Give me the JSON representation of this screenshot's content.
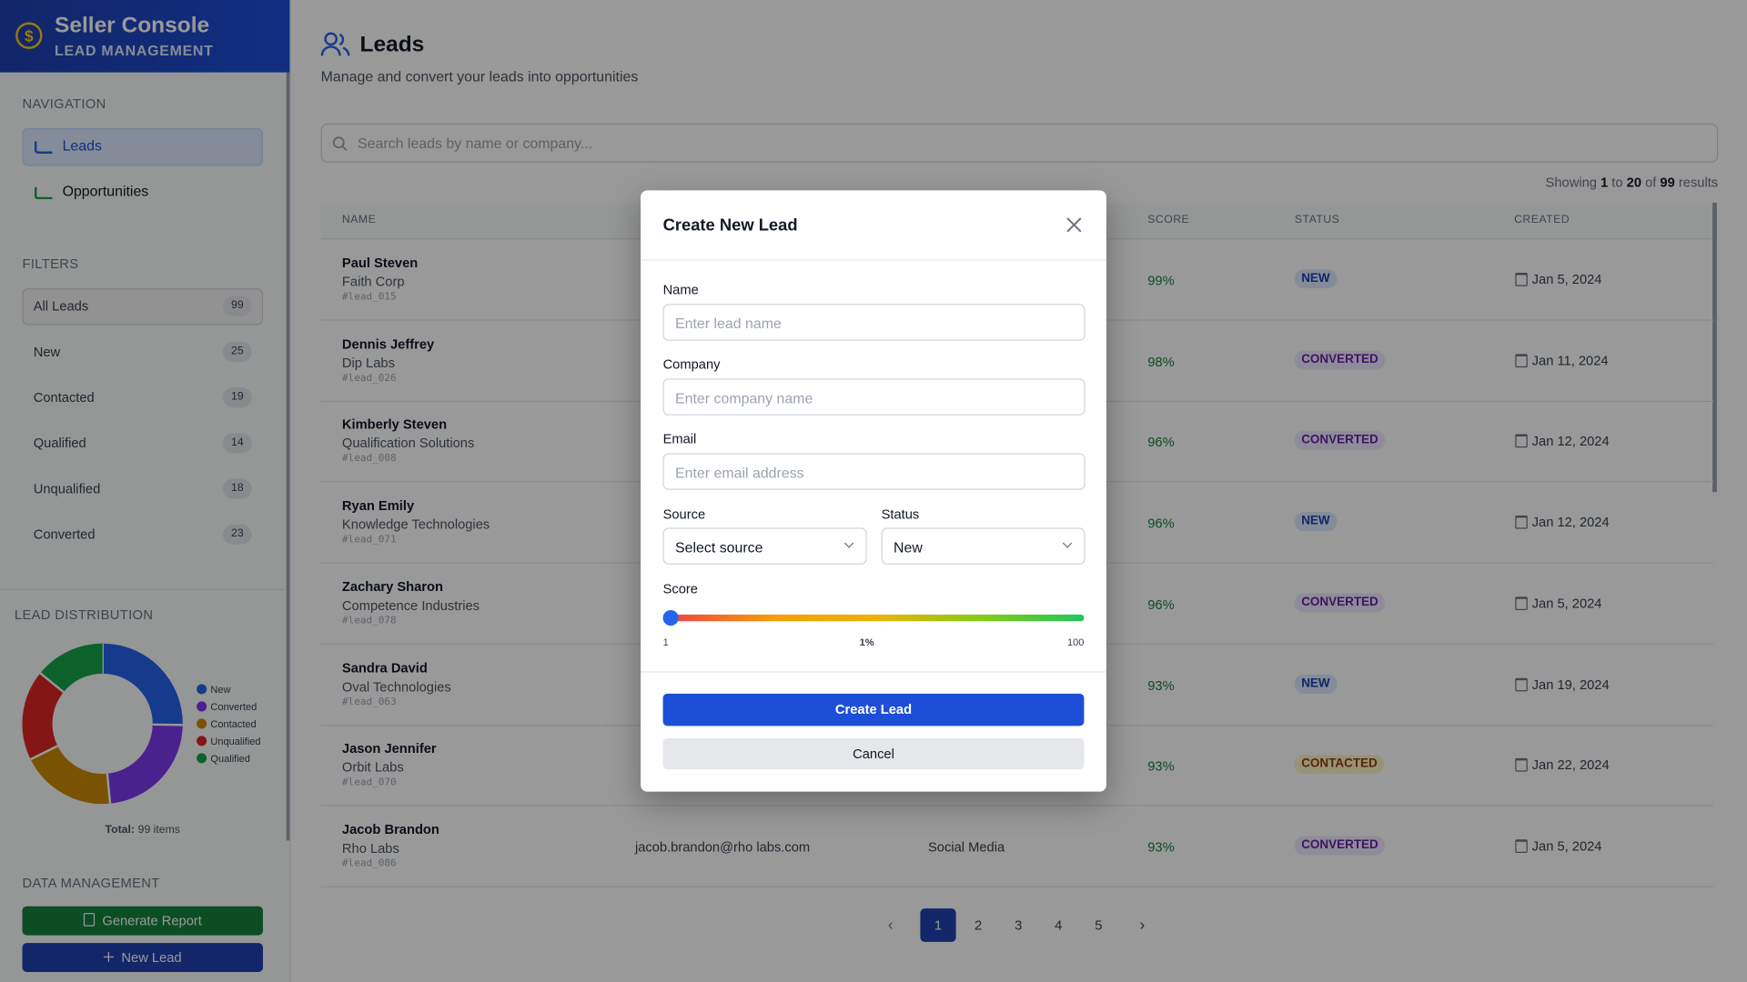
{
  "brand": {
    "title": "Seller Console",
    "subtitle": "LEAD MANAGEMENT"
  },
  "navigation": {
    "heading": "NAVIGATION",
    "items": [
      "Leads",
      "Opportunities"
    ]
  },
  "filters": {
    "heading": "FILTERS",
    "items": [
      {
        "label": "All Leads",
        "count": "99"
      },
      {
        "label": "New",
        "count": "25"
      },
      {
        "label": "Contacted",
        "count": "19"
      },
      {
        "label": "Qualified",
        "count": "14"
      },
      {
        "label": "Unqualified",
        "count": "18"
      },
      {
        "label": "Converted",
        "count": "23"
      }
    ]
  },
  "distribution": {
    "heading": "LEAD DISTRIBUTION",
    "type": "donut",
    "segments": [
      {
        "name": "New",
        "value": 25,
        "color": "#2563eb"
      },
      {
        "name": "Converted",
        "value": 23,
        "color": "#7c3aed"
      },
      {
        "name": "Contacted",
        "value": 19,
        "color": "#ca8a04"
      },
      {
        "name": "Unqualified",
        "value": 18,
        "color": "#dc2626"
      },
      {
        "name": "Qualified",
        "value": 14,
        "color": "#16a34a"
      }
    ],
    "total_label": "Total:",
    "total": "99 items"
  },
  "data_management": {
    "heading": "DATA MANAGEMENT",
    "buttons": [
      "Generate Report",
      "New Lead"
    ]
  },
  "page": {
    "title": "Leads",
    "subtitle": "Manage and convert your leads into opportunities",
    "search_placeholder": "Search leads by name or company...",
    "showing": [
      "Showing ",
      "1",
      " to ",
      "20",
      " of ",
      "99",
      " results"
    ]
  },
  "table": {
    "headers": {
      "name": "NAME",
      "score": "SCORE",
      "status": "STATUS",
      "created": "CREATED"
    },
    "rows": [
      {
        "name": "Paul Steven",
        "company": "Faith Corp",
        "id": "#lead_015",
        "score": "99%",
        "status": "NEW",
        "created": "Jan 5, 2024"
      },
      {
        "name": "Dennis Jeffrey",
        "company": "Dip Labs",
        "id": "#lead_026",
        "score": "98%",
        "status": "CONVERTED",
        "created": "Jan 11, 2024"
      },
      {
        "name": "Kimberly Steven",
        "company": "Qualification Solutions",
        "id": "#lead_008",
        "score": "96%",
        "status": "CONVERTED",
        "created": "Jan 12, 2024"
      },
      {
        "name": "Ryan Emily",
        "company": "Knowledge Technologies",
        "id": "#lead_071",
        "score": "96%",
        "status": "NEW",
        "created": "Jan 12, 2024"
      },
      {
        "name": "Zachary Sharon",
        "company": "Competence Industries",
        "id": "#lead_078",
        "score": "96%",
        "status": "CONVERTED",
        "created": "Jan 5, 2024"
      },
      {
        "name": "Sandra David",
        "company": "Oval Technologies",
        "id": "#lead_063",
        "score": "93%",
        "status": "NEW",
        "created": "Jan 19, 2024"
      },
      {
        "name": "Jason Jennifer",
        "company": "Orbit Labs",
        "id": "#lead_070",
        "score": "93%",
        "status": "CONTACTED",
        "created": "Jan 22, 2024"
      },
      {
        "name": "Jacob Brandon",
        "company": "Rho Labs",
        "id": "#lead_086",
        "email": "jacob.brandon@rho labs.com",
        "source": "Social Media",
        "score": "93%",
        "status": "CONVERTED",
        "created": "Jan 5, 2024"
      }
    ]
  },
  "pagination": [
    "1",
    "2",
    "3",
    "4",
    "5"
  ],
  "modal": {
    "title": "Create New Lead",
    "fields": [
      {
        "label": "Name",
        "placeholder": "Enter lead name"
      },
      {
        "label": "Company",
        "placeholder": "Enter company name"
      },
      {
        "label": "Email",
        "placeholder": "Enter email address"
      }
    ],
    "source": {
      "label": "Source",
      "placeholder": "Select source"
    },
    "status": {
      "label": "Status",
      "value": "New"
    },
    "score": {
      "label": "Score",
      "min": "1",
      "current": "1%",
      "max": "100"
    },
    "submit": "Create Lead",
    "cancel": "Cancel"
  }
}
